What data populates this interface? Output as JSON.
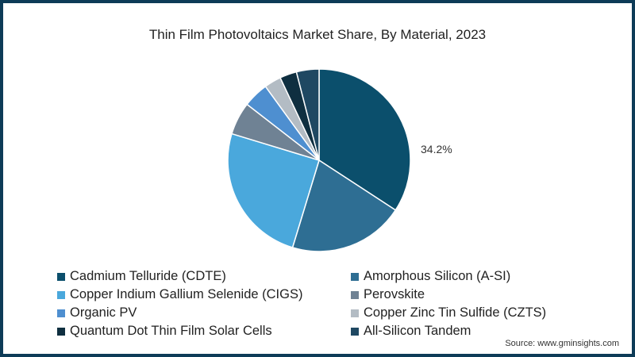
{
  "chart_data": {
    "type": "pie",
    "title": "Thin Film Photovoltaics Market Share, By Material, 2023",
    "categories": [
      "Cadmium Telluride (CDTE)",
      "Amorphous Silicon (A-SI)",
      "Copper Indium Gallium Selenide (CIGS)",
      "Perovskite",
      "Organic PV",
      "Copper Zinc Tin Sulfide (CZTS)",
      "Quantum Dot Thin Film Solar Cells",
      "All-Silicon Tandem"
    ],
    "values": [
      34.2,
      20.5,
      25.0,
      5.8,
      4.5,
      3.0,
      3.0,
      4.0
    ],
    "colors": [
      "#0b4f6c",
      "#2e6e93",
      "#4aa8dc",
      "#6f8294",
      "#4e8fd0",
      "#b3bcc4",
      "#0f2f40",
      "#1f4862"
    ],
    "annotations": [
      {
        "slice": "Cadmium Telluride (CDTE)",
        "text": "34.2%"
      }
    ],
    "legend_position": "bottom"
  },
  "title": "Thin Film Photovoltaics Market Share, By Material, 2023",
  "data_label": "34.2%",
  "legend": [
    {
      "label": "Cadmium Telluride (CDTE)",
      "color": "#0b4f6c"
    },
    {
      "label": "Amorphous Silicon (A-SI)",
      "color": "#2e6e93"
    },
    {
      "label": "Copper Indium Gallium Selenide (CIGS)",
      "color": "#4aa8dc"
    },
    {
      "label": "Perovskite",
      "color": "#6f8294"
    },
    {
      "label": "Organic PV",
      "color": "#4e8fd0"
    },
    {
      "label": "Copper Zinc Tin Sulfide (CZTS)",
      "color": "#b3bcc4"
    },
    {
      "label": "Quantum Dot Thin Film Solar Cells",
      "color": "#0f2f40"
    },
    {
      "label": "All-Silicon Tandem",
      "color": "#1f4862"
    }
  ],
  "source": "Source: www.gminsights.com"
}
